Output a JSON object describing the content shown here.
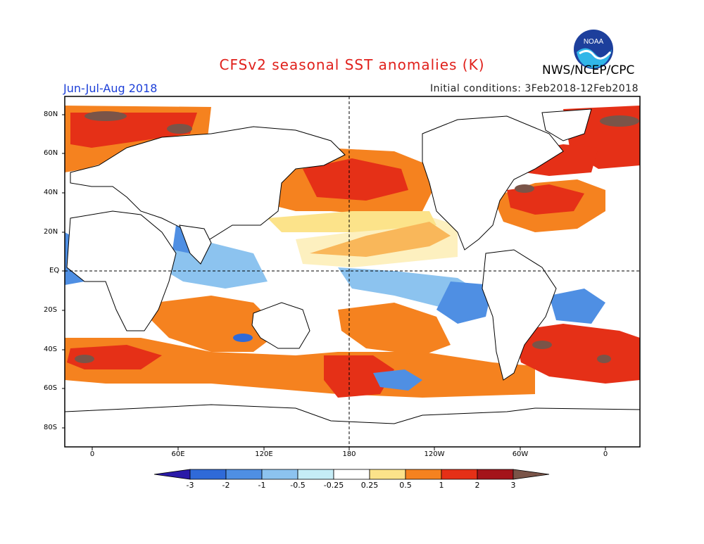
{
  "header": {
    "title": "CFSv2 seasonal SST anomalies (K)",
    "title_color": "#e0201b",
    "agency": "NWS/NCEP/CPC",
    "period": "Jun-Jul-Aug 2018",
    "period_color": "#1c3fd8",
    "initial_conditions": "Initial conditions: 3Feb2018-12Feb2018",
    "logo_text": "NOAA"
  },
  "map": {
    "lat_labels": [
      "80N",
      "60N",
      "40N",
      "20N",
      "EQ",
      "20S",
      "40S",
      "60S",
      "80S"
    ],
    "lon_labels": [
      "0",
      "60E",
      "120E",
      "180",
      "120W",
      "60W",
      "0"
    ]
  },
  "colorbar": {
    "labels": [
      "-3",
      "-2",
      "-1",
      "-0.5",
      "-0.25",
      "0.25",
      "0.5",
      "1",
      "2",
      "3"
    ],
    "colors": [
      "#2a1aa8",
      "#2f6ad8",
      "#4f8fe3",
      "#8cc3ef",
      "#c5ecf6",
      "#ffffff",
      "#fce38a",
      "#f5821f",
      "#e53017",
      "#a4141a",
      "#7a5448"
    ]
  }
}
